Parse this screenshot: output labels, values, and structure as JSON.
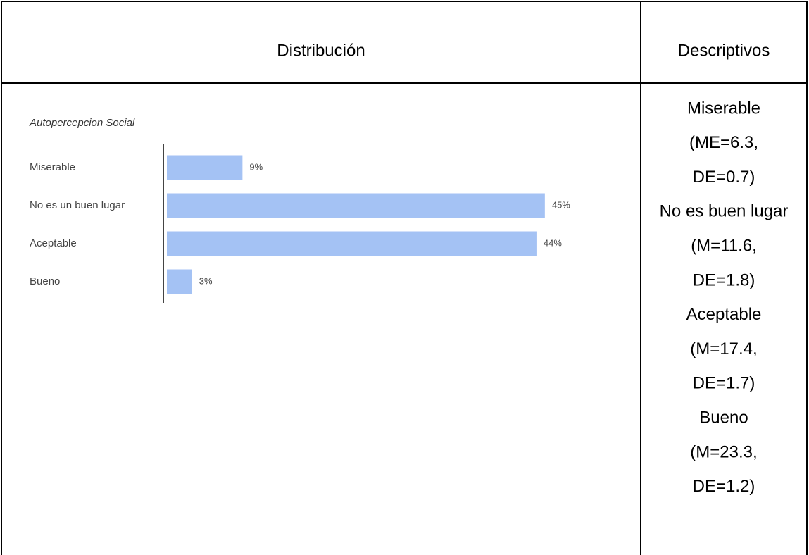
{
  "table": {
    "headers": [
      "Distribución",
      "Descriptivos"
    ],
    "descriptivos": [
      "Miserable",
      "(ME=6.3,",
      "DE=0.7)",
      "No es buen lugar",
      "(M=11.6,",
      "DE=1.8)",
      "Aceptable",
      "(M=17.4,",
      "DE=1.7)",
      "Bueno",
      "(M=23.3,",
      "DE=1.2)"
    ]
  },
  "chart_data": {
    "type": "hbar",
    "title": "Autopercepcion Social",
    "categories": [
      "Miserable",
      "No es un buen lugar",
      "Aceptable",
      "Bueno"
    ],
    "values": [
      9,
      45,
      44,
      3
    ],
    "value_labels": [
      "9%",
      "45%",
      "44%",
      "3%"
    ],
    "color": "#a4c2f4"
  }
}
